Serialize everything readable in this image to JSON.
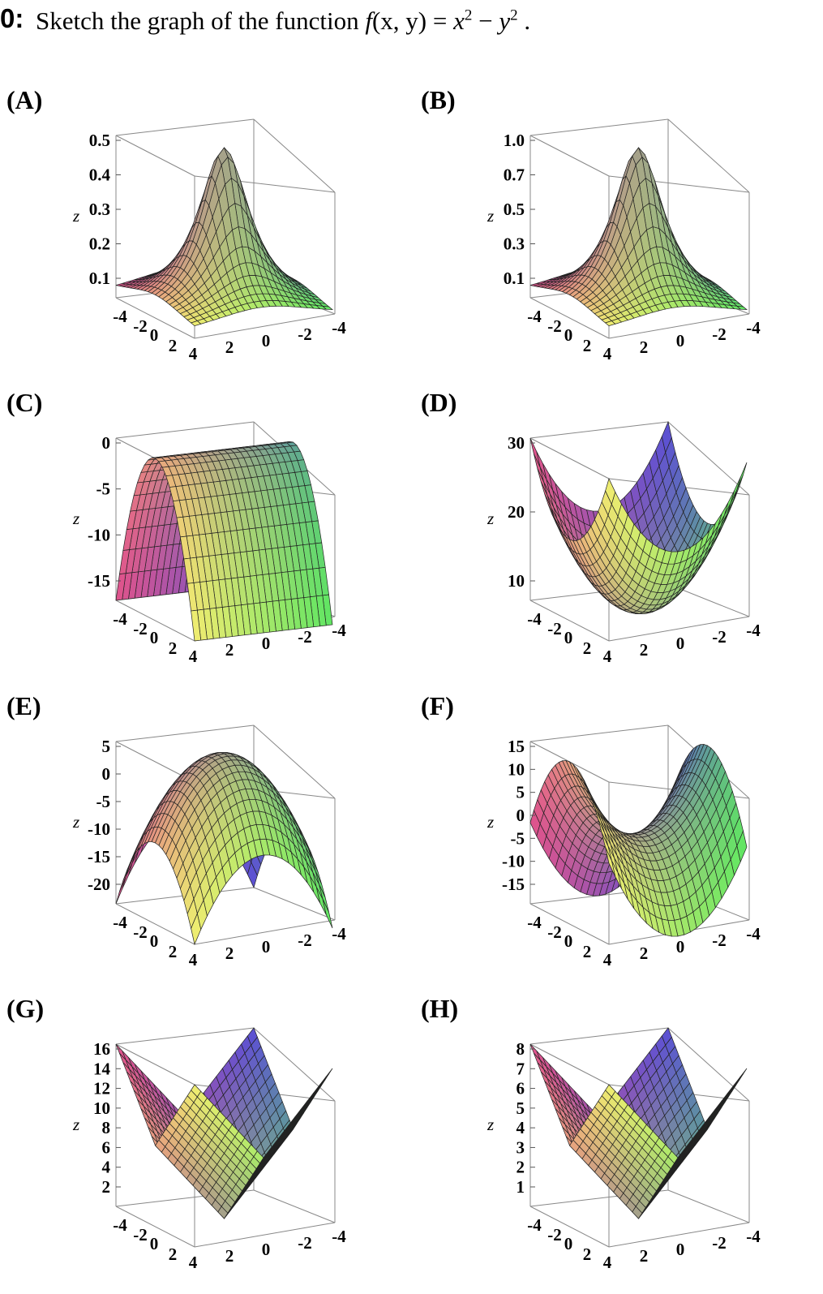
{
  "question": {
    "number": "0:",
    "prompt": "Sketch the graph of the function",
    "func_f": "f",
    "func_args": "(x, y)",
    "equals": " = ",
    "x": "x",
    "exp1": "2",
    "minus": " − ",
    "y": "y",
    "exp2": "2",
    "period": " ."
  },
  "axis_ticks": [
    "-4",
    "-2",
    "0",
    "2",
    "4",
    "2",
    "0",
    "-2",
    "-4"
  ],
  "z_label": "z",
  "panels": [
    {
      "label": "(A)",
      "type": "peak",
      "z_ticks": [
        "0.5",
        "0.4",
        "0.3",
        "0.2",
        "0.1"
      ]
    },
    {
      "label": "(B)",
      "type": "peak",
      "z_ticks": [
        "1.0",
        "0.7",
        "0.5",
        "0.3",
        "0.1"
      ]
    },
    {
      "label": "(C)",
      "type": "ridge",
      "z_ticks": [
        "0",
        "-5",
        "-10",
        "-15"
      ]
    },
    {
      "label": "(D)",
      "type": "abs",
      "z_ticks": [
        "30",
        "20",
        "10"
      ]
    },
    {
      "label": "(E)",
      "type": "dome",
      "z_ticks": [
        "5",
        "0",
        "-5",
        "-10",
        "-15",
        "-20"
      ]
    },
    {
      "label": "(F)",
      "type": "saddle",
      "z_ticks": [
        "15",
        "10",
        "5",
        "0",
        "-5",
        "-10",
        "-15"
      ]
    },
    {
      "label": "(G)",
      "type": "vshape",
      "z_ticks": [
        "16",
        "14",
        "12",
        "10",
        "8",
        "6",
        "4",
        "2"
      ]
    },
    {
      "label": "(H)",
      "type": "pyramid",
      "z_ticks": [
        "8",
        "7",
        "6",
        "5",
        "4",
        "3",
        "2",
        "1"
      ]
    }
  ],
  "colors": {
    "pink": "#e0508c",
    "blue": "#5a4fd6",
    "yellow": "#f0f070",
    "green": "#60e860",
    "orange": "#e8a050"
  }
}
